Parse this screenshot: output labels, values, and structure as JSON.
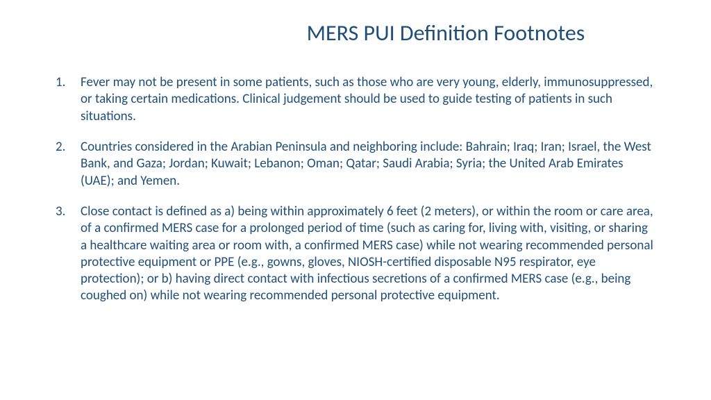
{
  "title": "MERS PUI Definition Footnotes",
  "colors": {
    "text": "#1f4e79",
    "background": "#ffffff"
  },
  "typography": {
    "title_fontsize": 32,
    "body_fontsize": 19,
    "line_height": 1.28,
    "font_family": "Calibri"
  },
  "footnotes": [
    "Fever may not be present in some patients, such as those who are very young, elderly, immunosuppressed, or taking certain medications. Clinical judgement should be used to guide testing of patients in such situations.",
    "Countries considered in the Arabian Peninsula and neighboring include: Bahrain; Iraq; Iran; Israel, the West Bank, and Gaza; Jordan; Kuwait; Lebanon; Oman; Qatar; Saudi Arabia; Syria; the United Arab Emirates (UAE); and Yemen.",
    "Close contact is defined as a) being within approximately 6 feet (2 meters), or within the room or care area, of a confirmed MERS case for a prolonged period of time (such as caring for, living with, visiting, or sharing a healthcare waiting area or room with, a confirmed MERS case) while not wearing recommended personal protective equipment or PPE (e.g., gowns, gloves, NIOSH-certified disposable N95 respirator, eye protection); or b) having direct contact with infectious secretions of a confirmed MERS case (e.g., being coughed on) while not wearing recommended personal protective equipment."
  ]
}
